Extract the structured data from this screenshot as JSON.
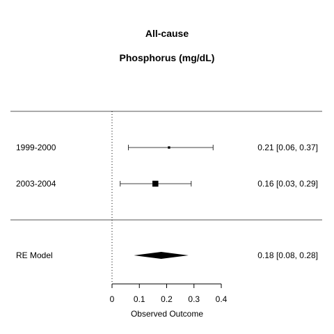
{
  "chart_data": {
    "type": "forest",
    "title": "All-cause",
    "subtitle": "Phosphorus (mg/dL)",
    "xlabel": "Observed Outcome",
    "xlim": [
      0,
      0.4
    ],
    "xticks": [
      0,
      0.1,
      0.2,
      0.3,
      0.4
    ],
    "xtick_labels": [
      "0",
      "0.1",
      "0.2",
      "0.3",
      "0.4"
    ],
    "reference_line": 0,
    "studies": [
      {
        "label": "1999-2000",
        "estimate": 0.21,
        "lower": 0.06,
        "upper": 0.37,
        "weight": 0.02,
        "ci_text": "0.21 [0.06, 0.37]"
      },
      {
        "label": "2003-2004",
        "estimate": 0.16,
        "lower": 0.03,
        "upper": 0.29,
        "weight": 0.98,
        "ci_text": "0.16 [0.03, 0.29]"
      }
    ],
    "summary": {
      "label": "RE Model",
      "estimate": 0.18,
      "lower": 0.08,
      "upper": 0.28,
      "ci_text": "0.18 [0.08, 0.28]"
    }
  }
}
